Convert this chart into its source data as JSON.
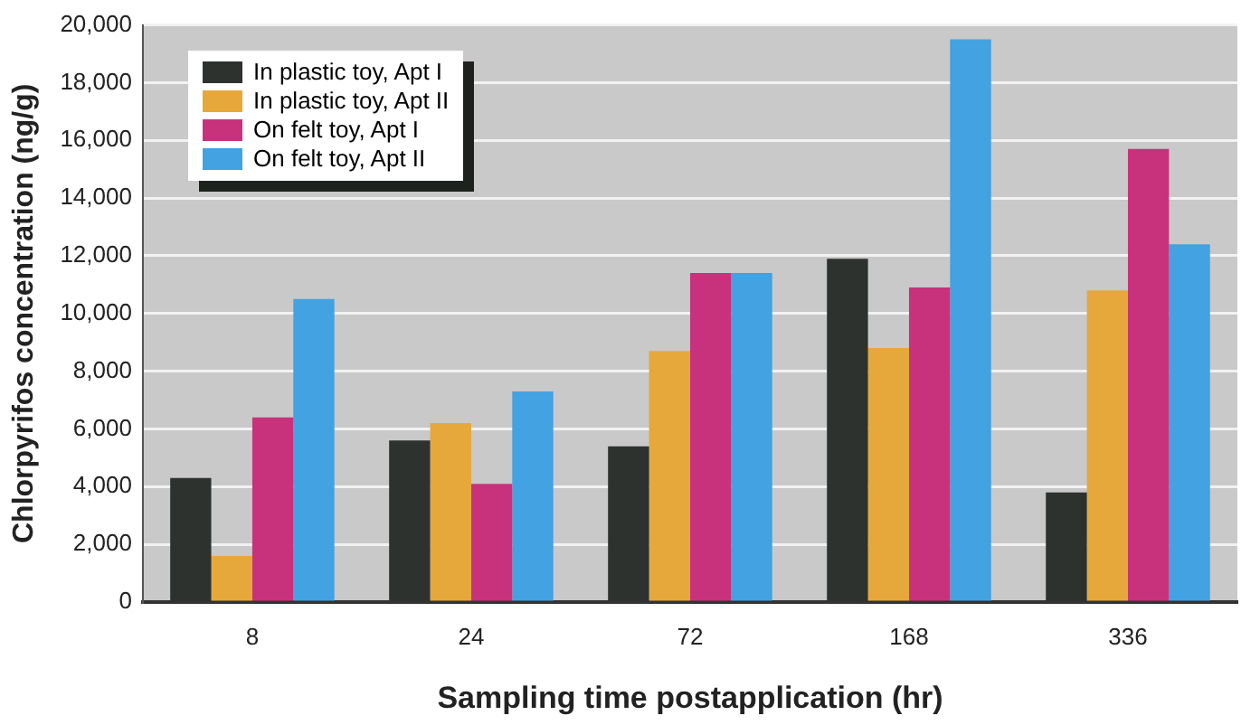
{
  "chart_data": {
    "type": "bar",
    "xlabel": "Sampling time postapplication (hr)",
    "ylabel": "Chlorpyrifos concentration (ng/g)",
    "categories": [
      "8",
      "24",
      "72",
      "168",
      "336"
    ],
    "series": [
      {
        "name": "In plastic toy, Apt I",
        "color": "#2e322e",
        "values": [
          4300,
          5600,
          5400,
          11900,
          3800
        ]
      },
      {
        "name": "In plastic toy, Apt II",
        "color": "#e6a83a",
        "values": [
          1600,
          6200,
          8700,
          8800,
          10800
        ]
      },
      {
        "name": "On felt toy, Apt I",
        "color": "#c8327c",
        "values": [
          6400,
          4100,
          11400,
          10900,
          15700
        ]
      },
      {
        "name": "On felt toy, Apt II",
        "color": "#42a2e2",
        "values": [
          10500,
          7300,
          11400,
          19500,
          12400
        ]
      }
    ],
    "ylim": [
      0,
      20000
    ],
    "yticks": [
      {
        "value": 0,
        "label": "0"
      },
      {
        "value": 2000,
        "label": "2,000"
      },
      {
        "value": 4000,
        "label": "4,000"
      },
      {
        "value": 6000,
        "label": "6,000"
      },
      {
        "value": 8000,
        "label": "8,000"
      },
      {
        "value": 10000,
        "label": "10,000"
      },
      {
        "value": 12000,
        "label": "12,000"
      },
      {
        "value": 14000,
        "label": "14,000"
      },
      {
        "value": 16000,
        "label": "16,000"
      },
      {
        "value": 18000,
        "label": "18,000"
      },
      {
        "value": 20000,
        "label": "20,000"
      }
    ],
    "grid": "y",
    "legend": "top left"
  }
}
